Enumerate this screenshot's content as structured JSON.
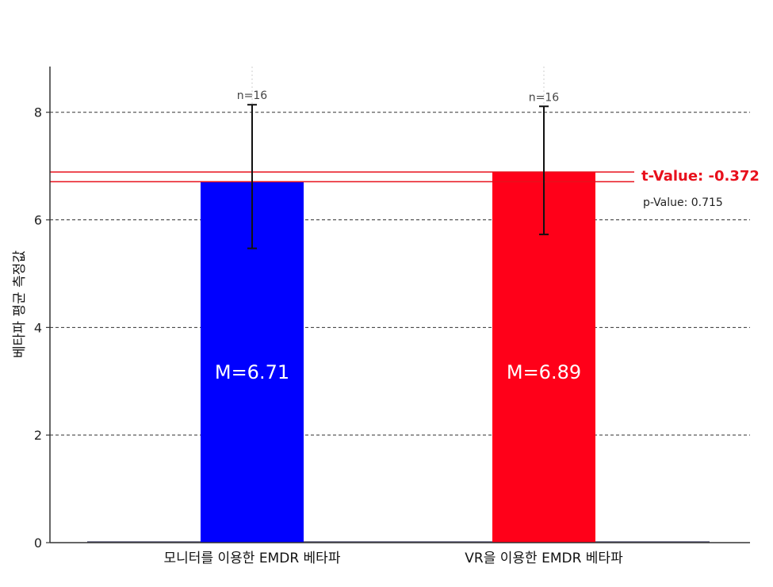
{
  "chart_data": {
    "type": "bar",
    "title": "",
    "xlabel": "",
    "ylabel": "베타파 평균 측정값",
    "categories": [
      "모니터를 이용한 EMDR 베타파",
      "VR을 이용한 EMDR 베타파"
    ],
    "values": [
      6.71,
      6.89
    ],
    "error_bars": [
      {
        "low": 5.47,
        "high": 8.14
      },
      {
        "low": 5.73,
        "high": 8.11
      }
    ],
    "bar_colors": [
      "#0000ff",
      "#ff0019"
    ],
    "mean_labels": [
      "M=6.71",
      "M=6.89"
    ],
    "n_labels": [
      "n=16",
      "n=16"
    ],
    "reference_lines": [
      6.71,
      6.89
    ],
    "reference_line_color": "#e8101c",
    "annotations": {
      "t_value": "t-Value: -0.372",
      "p_value": "p-Value: 0.715"
    },
    "ylim": [
      0,
      8.85
    ],
    "yticks": [
      0,
      2,
      4,
      6,
      8
    ],
    "grid": "horizontal dashed"
  }
}
